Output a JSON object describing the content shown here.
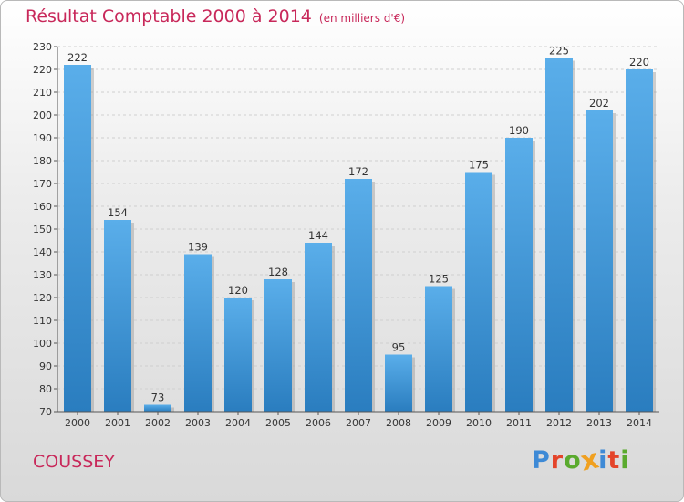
{
  "header": {
    "title": "Résultat Comptable 2000 à 2014",
    "subtitle": "(en milliers d'€)"
  },
  "footer": {
    "commune": "COUSSEY",
    "brand_letters": [
      {
        "ch": "P",
        "color": "#3e8ad6"
      },
      {
        "ch": "r",
        "color": "#e4442a"
      },
      {
        "ch": "o",
        "color": "#5aaa2e"
      },
      {
        "ch": "x",
        "color": "#f0a020"
      },
      {
        "ch": "i",
        "color": "#3e8ad6"
      },
      {
        "ch": "t",
        "color": "#e4442a"
      },
      {
        "ch": "i",
        "color": "#5aaa2e"
      }
    ]
  },
  "chart_data": {
    "type": "bar",
    "title": "Résultat Comptable 2000 à 2014",
    "subtitle": "(en milliers d'€)",
    "xlabel": "",
    "ylabel": "",
    "categories": [
      "2000",
      "2001",
      "2002",
      "2003",
      "2004",
      "2005",
      "2006",
      "2007",
      "2008",
      "2009",
      "2010",
      "2011",
      "2012",
      "2013",
      "2014"
    ],
    "values": [
      222,
      154,
      73,
      139,
      120,
      128,
      144,
      172,
      95,
      125,
      175,
      190,
      225,
      202,
      220
    ],
    "ylim": [
      70,
      230
    ],
    "yticks": [
      70,
      80,
      90,
      100,
      110,
      120,
      130,
      140,
      150,
      160,
      170,
      180,
      190,
      200,
      210,
      220,
      230
    ],
    "grid": true,
    "bar_color": "#4a9fdf"
  }
}
